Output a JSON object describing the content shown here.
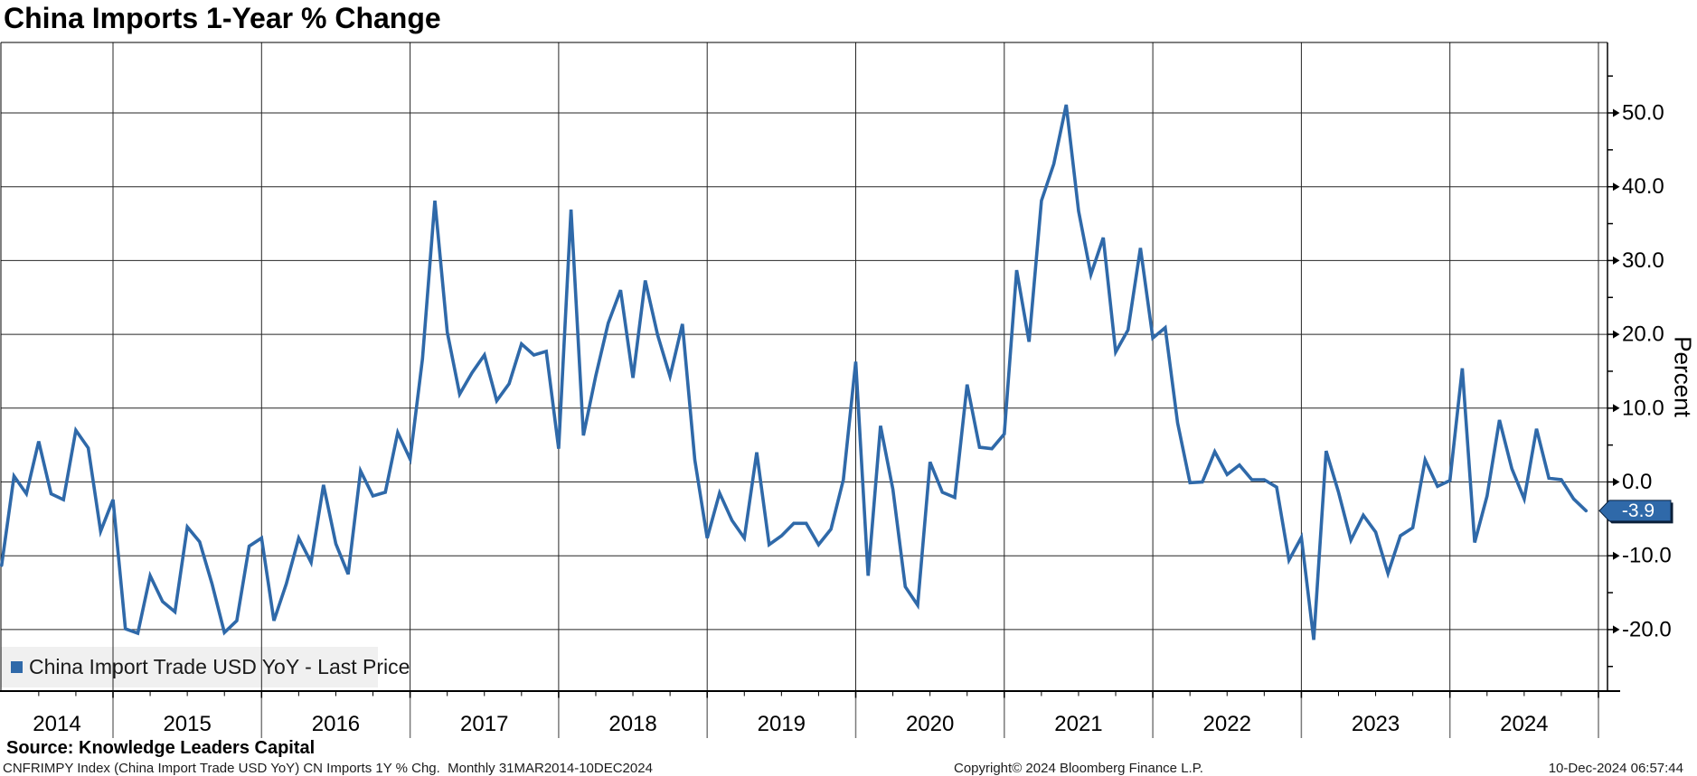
{
  "title": "China Imports 1-Year % Change",
  "legend": {
    "label": "China Import Trade USD YoY - Last Price"
  },
  "y_axis": {
    "label": "Percent",
    "major_ticks": [
      50,
      40,
      30,
      20,
      10,
      0,
      -10,
      -20
    ],
    "minor_ticks": [
      55,
      45,
      35,
      25,
      15,
      5,
      -5,
      -15,
      -25
    ],
    "decimals": 1
  },
  "x_axis": {
    "year_labels": [
      "2014",
      "2015",
      "2016",
      "2017",
      "2018",
      "2019",
      "2020",
      "2021",
      "2022",
      "2023",
      "2024"
    ]
  },
  "last_price": {
    "value": -3.9,
    "label": "-3.9"
  },
  "footer": {
    "source": "Source: Knowledge Leaders Capital",
    "description": "CNFRIMPY Index (China Import Trade USD YoY) CN Imports 1Y % Chg.  Monthly 31MAR2014-10DEC2024",
    "copyright": "Copyright© 2024 Bloomberg Finance L.P.",
    "timestamp": "10-Dec-2024 06:57:44"
  },
  "colors": {
    "line": "#2f69a9",
    "grid": "#262626",
    "axis": "#000000",
    "sub_axis_grid": "#7a7a7a",
    "legend_bg": "#f0f0f0",
    "badge_bg": "#2f69a9",
    "badge_border": "#0a2240",
    "badge_shadow": "#0b1f38",
    "badge_text": "#ffffff",
    "text": "#000000"
  },
  "chart_data": {
    "type": "line",
    "series_name": "China Import Trade USD YoY - Last Price",
    "frequency": "monthly",
    "start_month": "2014-03",
    "end_month": "2024-11",
    "unit": "percent",
    "ylabel": "Percent",
    "ylim": [
      -28,
      60
    ],
    "grid": true,
    "legend_position": "bottom-left",
    "values": [
      -11.3,
      0.8,
      -1.6,
      5.5,
      -1.6,
      -2.4,
      7.0,
      4.6,
      -6.7,
      -2.4,
      -19.9,
      -20.5,
      -12.7,
      -16.2,
      -17.6,
      -6.1,
      -8.1,
      -13.8,
      -20.4,
      -18.8,
      -8.7,
      -7.6,
      -18.8,
      -13.8,
      -7.6,
      -10.9,
      -0.4,
      -8.4,
      -12.5,
      1.5,
      -1.9,
      -1.4,
      6.7,
      3.1,
      16.7,
      38.1,
      20.3,
      11.9,
      14.8,
      17.2,
      11.0,
      13.3,
      18.7,
      17.2,
      17.7,
      4.5,
      36.9,
      6.3,
      14.4,
      21.5,
      26.0,
      14.1,
      27.3,
      19.9,
      14.3,
      21.4,
      3.0,
      -7.6,
      -1.5,
      -5.2,
      -7.6,
      4.0,
      -8.5,
      -7.3,
      -5.6,
      -5.6,
      -8.5,
      -6.4,
      0.3,
      16.3,
      -12.7,
      7.6,
      -1.0,
      -14.2,
      -16.7,
      2.7,
      -1.4,
      -2.1,
      13.2,
      4.7,
      4.5,
      6.5,
      28.7,
      19.0,
      38.1,
      43.1,
      51.1,
      36.7,
      28.1,
      33.1,
      17.6,
      20.6,
      31.7,
      19.5,
      20.9,
      8.0,
      -0.1,
      0.0,
      4.1,
      1.0,
      2.3,
      0.3,
      0.3,
      -0.7,
      -10.6,
      -7.5,
      -21.4,
      4.2,
      -1.4,
      -7.9,
      -4.5,
      -6.8,
      -12.4,
      -7.3,
      -6.2,
      3.0,
      -0.6,
      0.2,
      15.4,
      -8.2,
      -1.9,
      8.4,
      1.8,
      -2.3,
      7.2,
      0.5,
      0.3,
      -2.3,
      -3.9
    ]
  }
}
